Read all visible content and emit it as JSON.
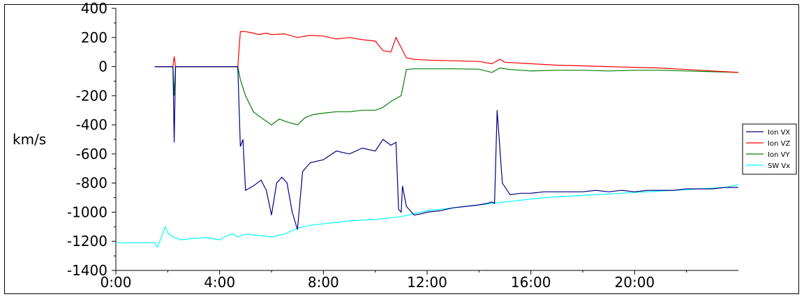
{
  "chart_data": {
    "type": "line",
    "title": "",
    "xlabel": "",
    "ylabel": "km/s",
    "xlim": [
      0,
      24
    ],
    "ylim": [
      -1400,
      400
    ],
    "x_tick_labels": [
      "0:00",
      "4:00",
      "8:00",
      "12:00",
      "16:00",
      "20:00"
    ],
    "y_tick_labels": [
      "400",
      "200",
      "0",
      "-200",
      "-400",
      "-600",
      "-800",
      "-1000",
      "-1200",
      "-1400"
    ],
    "legend_position": "right",
    "grid": false,
    "series": [
      {
        "name": "Ion VX",
        "color": "#000080",
        "x": [
          1.5,
          2.2,
          2.25,
          2.3,
          2.35,
          4.7,
          4.8,
          4.9,
          5.0,
          5.3,
          5.6,
          5.8,
          6.0,
          6.2,
          6.4,
          6.6,
          6.8,
          7.0,
          7.2,
          7.5,
          8.0,
          8.5,
          9.0,
          9.5,
          10.0,
          10.3,
          10.6,
          10.8,
          10.9,
          11.0,
          11.05,
          11.2,
          11.5,
          11.8,
          12.0,
          12.5,
          13.0,
          13.5,
          14.0,
          14.3,
          14.5,
          14.6,
          14.7,
          14.9,
          15.2,
          15.6,
          16.0,
          16.5,
          17.0,
          17.5,
          18.0,
          18.5,
          19.0,
          19.5,
          20.0,
          20.5,
          21.0,
          21.5,
          22.0,
          22.5,
          23.0,
          23.5,
          24.0
        ],
        "y": [
          0,
          0,
          -520,
          0,
          0,
          0,
          -550,
          -500,
          -850,
          -820,
          -780,
          -850,
          -1020,
          -800,
          -760,
          -800,
          -1000,
          -1120,
          -720,
          -660,
          -640,
          -580,
          -600,
          -560,
          -580,
          -500,
          -540,
          -520,
          -980,
          -1000,
          -820,
          -960,
          -1020,
          -1010,
          -1000,
          -990,
          -970,
          -960,
          -950,
          -940,
          -930,
          -940,
          -300,
          -800,
          -880,
          -870,
          -870,
          -860,
          -860,
          -860,
          -860,
          -850,
          -860,
          -850,
          -860,
          -850,
          -850,
          -850,
          -840,
          -840,
          -840,
          -830,
          -830
        ]
      },
      {
        "name": "Ion VZ",
        "color": "#ff0000",
        "x": [
          1.5,
          2.2,
          2.25,
          2.3,
          4.7,
          4.8,
          5.0,
          5.3,
          5.5,
          5.8,
          6.0,
          6.5,
          7.0,
          7.5,
          8.0,
          8.5,
          9.0,
          9.5,
          10.0,
          10.3,
          10.6,
          10.8,
          11.0,
          11.2,
          11.5,
          12.0,
          13.0,
          14.0,
          14.5,
          14.8,
          15.0,
          16.0,
          17.0,
          18.0,
          19.0,
          20.0,
          21.0,
          22.0,
          23.0,
          24.0
        ],
        "y": [
          0,
          0,
          70,
          0,
          0,
          240,
          240,
          230,
          220,
          230,
          220,
          225,
          200,
          215,
          210,
          190,
          200,
          185,
          175,
          110,
          100,
          200,
          130,
          60,
          50,
          45,
          40,
          35,
          20,
          50,
          30,
          20,
          10,
          5,
          0,
          -5,
          -10,
          -20,
          -30,
          -40
        ]
      },
      {
        "name": "Ion VY",
        "color": "#008000",
        "x": [
          1.5,
          2.2,
          2.25,
          2.3,
          4.7,
          4.8,
          5.0,
          5.3,
          5.6,
          6.0,
          6.3,
          6.6,
          7.0,
          7.3,
          7.6,
          8.0,
          8.5,
          9.0,
          9.5,
          10.0,
          10.3,
          10.6,
          10.8,
          11.0,
          11.2,
          11.5,
          12.0,
          13.0,
          14.0,
          14.5,
          14.8,
          15.2,
          16.0,
          17.0,
          18.0,
          19.0,
          20.0,
          21.0,
          22.0,
          23.0,
          24.0
        ],
        "y": [
          0,
          0,
          -200,
          0,
          0,
          -90,
          -200,
          -310,
          -350,
          -400,
          -360,
          -380,
          -400,
          -350,
          -330,
          -320,
          -310,
          -310,
          -300,
          -300,
          -280,
          -240,
          -220,
          -200,
          -20,
          -15,
          -15,
          -15,
          -18,
          -40,
          -10,
          -20,
          -30,
          -25,
          -25,
          -30,
          -25,
          -25,
          -30,
          -35,
          -40
        ]
      },
      {
        "name": "SW Vx",
        "color": "#00ffff",
        "x": [
          0,
          1.5,
          1.6,
          1.8,
          1.9,
          2.0,
          2.2,
          2.5,
          3.0,
          3.5,
          4.0,
          4.3,
          4.5,
          4.7,
          5.0,
          5.5,
          6.0,
          6.5,
          7.0,
          7.5,
          8.0,
          8.5,
          9.0,
          9.5,
          10.0,
          10.5,
          11.0,
          11.5,
          12.0,
          12.5,
          13.0,
          13.5,
          14.0,
          14.5,
          15.0,
          15.5,
          16.0,
          16.5,
          17.0,
          17.5,
          18.0,
          18.5,
          19.0,
          19.5,
          20.0,
          20.5,
          21.0,
          21.5,
          22.0,
          22.5,
          23.0,
          23.5,
          24.0
        ],
        "y": [
          -1210,
          -1210,
          -1240,
          -1150,
          -1100,
          -1140,
          -1170,
          -1190,
          -1180,
          -1175,
          -1190,
          -1160,
          -1150,
          -1170,
          -1150,
          -1160,
          -1170,
          -1150,
          -1110,
          -1090,
          -1080,
          -1070,
          -1060,
          -1055,
          -1050,
          -1040,
          -1030,
          -1010,
          -990,
          -980,
          -970,
          -960,
          -950,
          -940,
          -930,
          -920,
          -910,
          -900,
          -895,
          -890,
          -885,
          -880,
          -875,
          -870,
          -865,
          -860,
          -855,
          -850,
          -845,
          -840,
          -835,
          -830,
          -810
        ]
      }
    ]
  }
}
